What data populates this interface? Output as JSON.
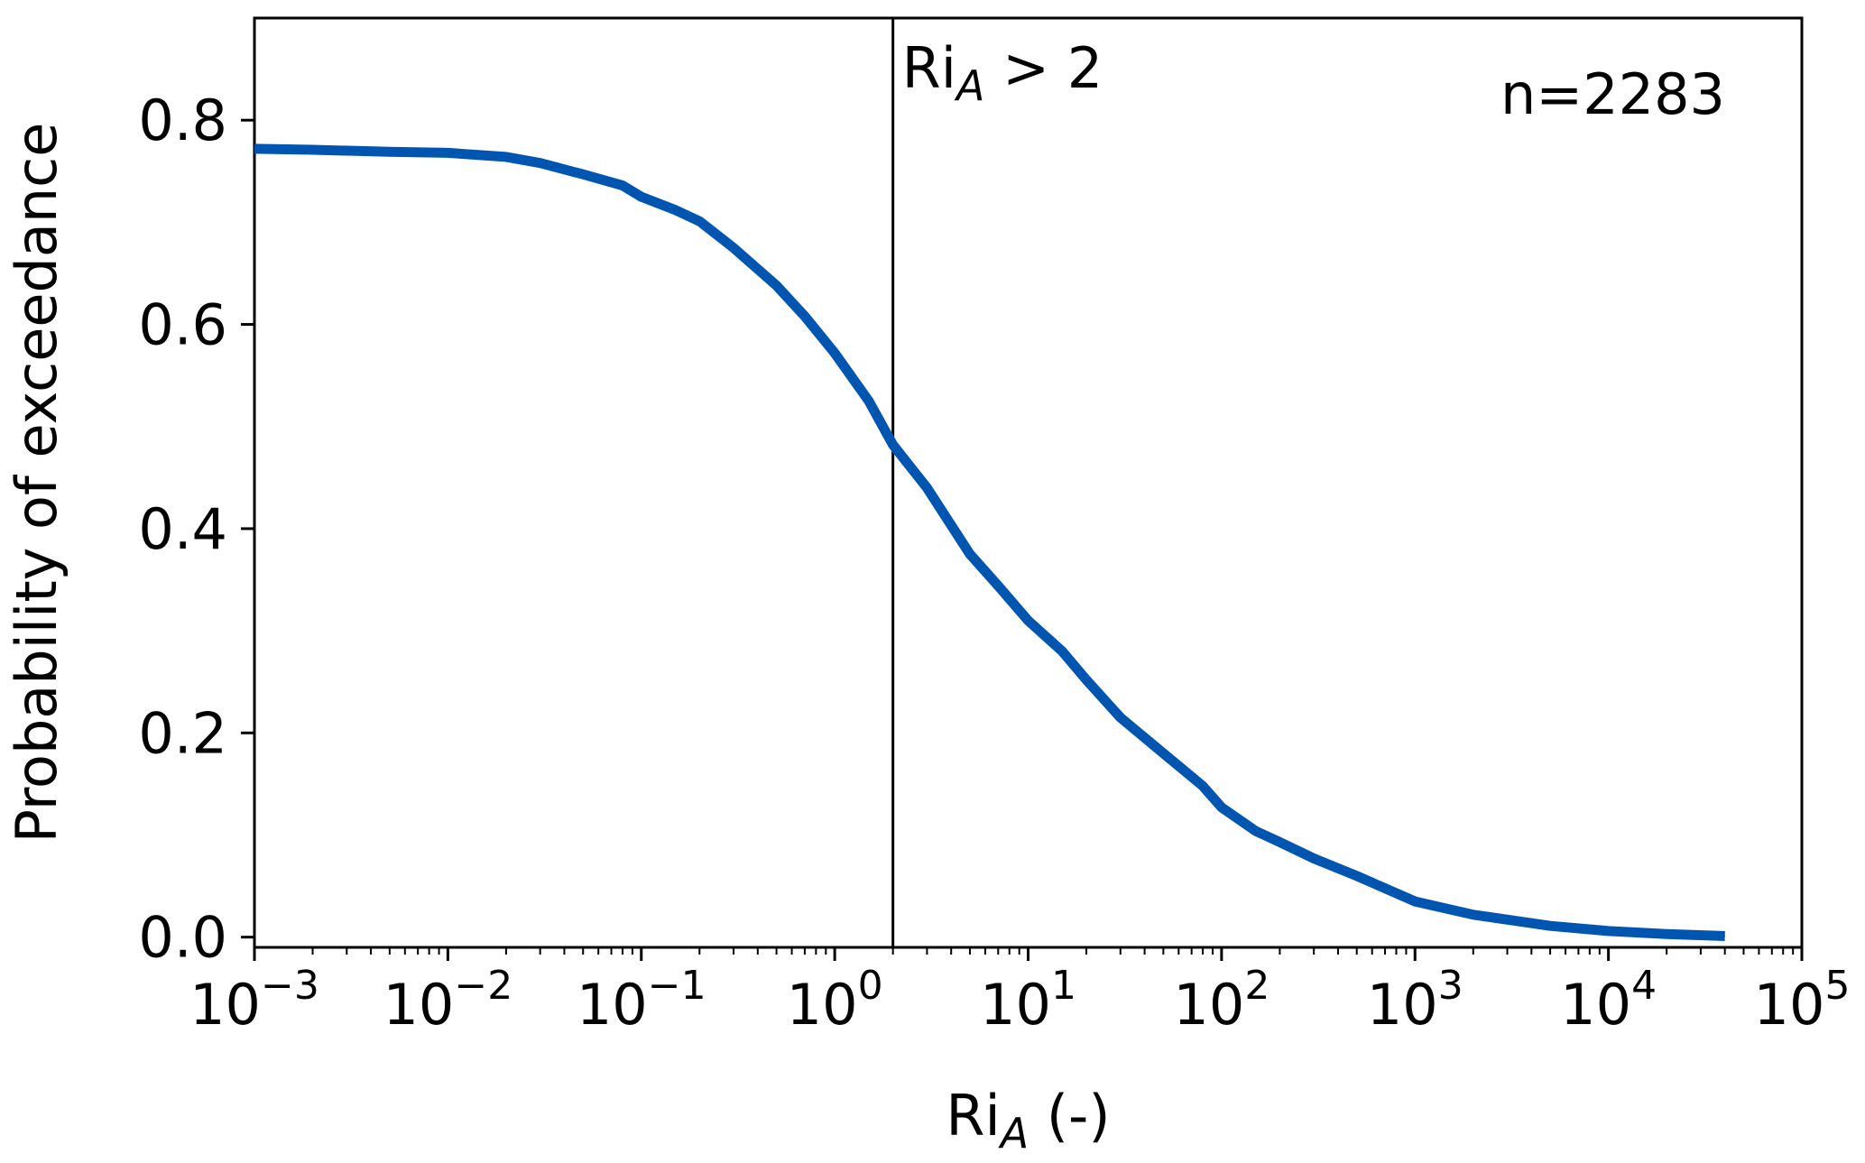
{
  "chart_data": {
    "type": "line",
    "xscale": "log",
    "xlim": [
      0.001,
      100000
    ],
    "ylim": [
      -0.01,
      0.9
    ],
    "xlabel": {
      "base": "Ri",
      "sub": "A",
      "rest": " (-)"
    },
    "ylabel": "Probability of exceedance",
    "x_ticks": [
      {
        "value": 0.001,
        "base": "10",
        "exp": "−3"
      },
      {
        "value": 0.01,
        "base": "10",
        "exp": "−2"
      },
      {
        "value": 0.1,
        "base": "10",
        "exp": "−1"
      },
      {
        "value": 1,
        "base": "10",
        "exp": "0"
      },
      {
        "value": 10,
        "base": "10",
        "exp": "1"
      },
      {
        "value": 100,
        "base": "10",
        "exp": "2"
      },
      {
        "value": 1000,
        "base": "10",
        "exp": "3"
      },
      {
        "value": 10000,
        "base": "10",
        "exp": "4"
      },
      {
        "value": 100000,
        "base": "10",
        "exp": "5"
      }
    ],
    "y_ticks": [
      {
        "value": 0.0,
        "label": "0.0"
      },
      {
        "value": 0.2,
        "label": "0.2"
      },
      {
        "value": 0.4,
        "label": "0.4"
      },
      {
        "value": 0.6,
        "label": "0.6"
      },
      {
        "value": 0.8,
        "label": "0.8"
      }
    ],
    "grid": false,
    "series": [
      {
        "color": "#0055b0",
        "points": [
          [
            0.001,
            0.772
          ],
          [
            0.002,
            0.771
          ],
          [
            0.005,
            0.769
          ],
          [
            0.01,
            0.768
          ],
          [
            0.02,
            0.764
          ],
          [
            0.03,
            0.758
          ],
          [
            0.05,
            0.747
          ],
          [
            0.08,
            0.736
          ],
          [
            0.1,
            0.725
          ],
          [
            0.15,
            0.712
          ],
          [
            0.2,
            0.701
          ],
          [
            0.3,
            0.675
          ],
          [
            0.5,
            0.638
          ],
          [
            0.7,
            0.608
          ],
          [
            1.0,
            0.572
          ],
          [
            1.5,
            0.525
          ],
          [
            2.0,
            0.482
          ],
          [
            3.0,
            0.44
          ],
          [
            5.0,
            0.375
          ],
          [
            7.0,
            0.344
          ],
          [
            10.0,
            0.31
          ],
          [
            15.0,
            0.28
          ],
          [
            20.0,
            0.252
          ],
          [
            30.0,
            0.215
          ],
          [
            50.0,
            0.18
          ],
          [
            80.0,
            0.148
          ],
          [
            100.0,
            0.127
          ],
          [
            150.0,
            0.104
          ],
          [
            200.0,
            0.093
          ],
          [
            300.0,
            0.077
          ],
          [
            500.0,
            0.06
          ],
          [
            1000.0,
            0.035
          ],
          [
            2000.0,
            0.022
          ],
          [
            5000.0,
            0.011
          ],
          [
            10000.0,
            0.006
          ],
          [
            20000.0,
            0.003
          ],
          [
            40000.0,
            0.001
          ]
        ]
      }
    ],
    "vline": {
      "x": 2,
      "color": "#000000"
    },
    "annotations": [
      {
        "base": "Ri",
        "sub": "A",
        "rest": " > 2"
      },
      {
        "text": "n=2283"
      }
    ]
  }
}
